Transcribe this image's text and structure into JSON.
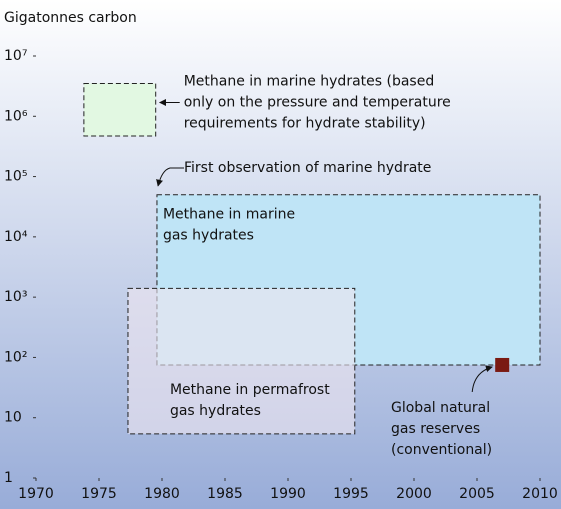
{
  "chart_data": {
    "type": "range",
    "y_label": "Gigatonnes carbon",
    "xlim": [
      1970,
      2010
    ],
    "xticks": [
      1970,
      1975,
      1980,
      1985,
      1990,
      1995,
      2000,
      2005,
      2010
    ],
    "ylim": [
      1,
      10000000
    ],
    "log_y": true,
    "yticks": [
      1,
      10,
      {
        "value": 100,
        "label": "10²"
      },
      {
        "value": 1000,
        "label": "10³"
      },
      {
        "value": 10000,
        "label": "10⁴"
      },
      {
        "value": 100000,
        "label": "10⁵"
      },
      {
        "value": 1000000,
        "label": "10⁶"
      },
      {
        "value": 10000000,
        "label": "10⁷"
      }
    ],
    "regions": [
      {
        "label": [
          "Methane in marine hydrates (based",
          "only on the pressure and temperature",
          "requirements for hydrate stability)"
        ],
        "x": [
          1973.8,
          1979.5
        ],
        "y": [
          470000,
          3500000
        ],
        "color": "#e2f8e2"
      },
      {
        "label": [
          "Methane in marine",
          "gas hydrates"
        ],
        "x": [
          1979.6,
          2010
        ],
        "y": [
          75,
          50000
        ],
        "color": "#bfe4f6"
      },
      {
        "label": [
          "Methane in permafrost",
          "gas hydrates"
        ],
        "x": [
          1977.3,
          1995.3
        ],
        "y": [
          5.4,
          1400
        ],
        "color": "#efe6f0"
      }
    ],
    "annotation": {
      "text": "First observation of marine hydrate",
      "x": 1980
    },
    "point": {
      "label": [
        "Global natural",
        "gas reserves",
        "(conventional)"
      ],
      "x": 2007,
      "y": 75,
      "color": "#7a1a12"
    }
  }
}
